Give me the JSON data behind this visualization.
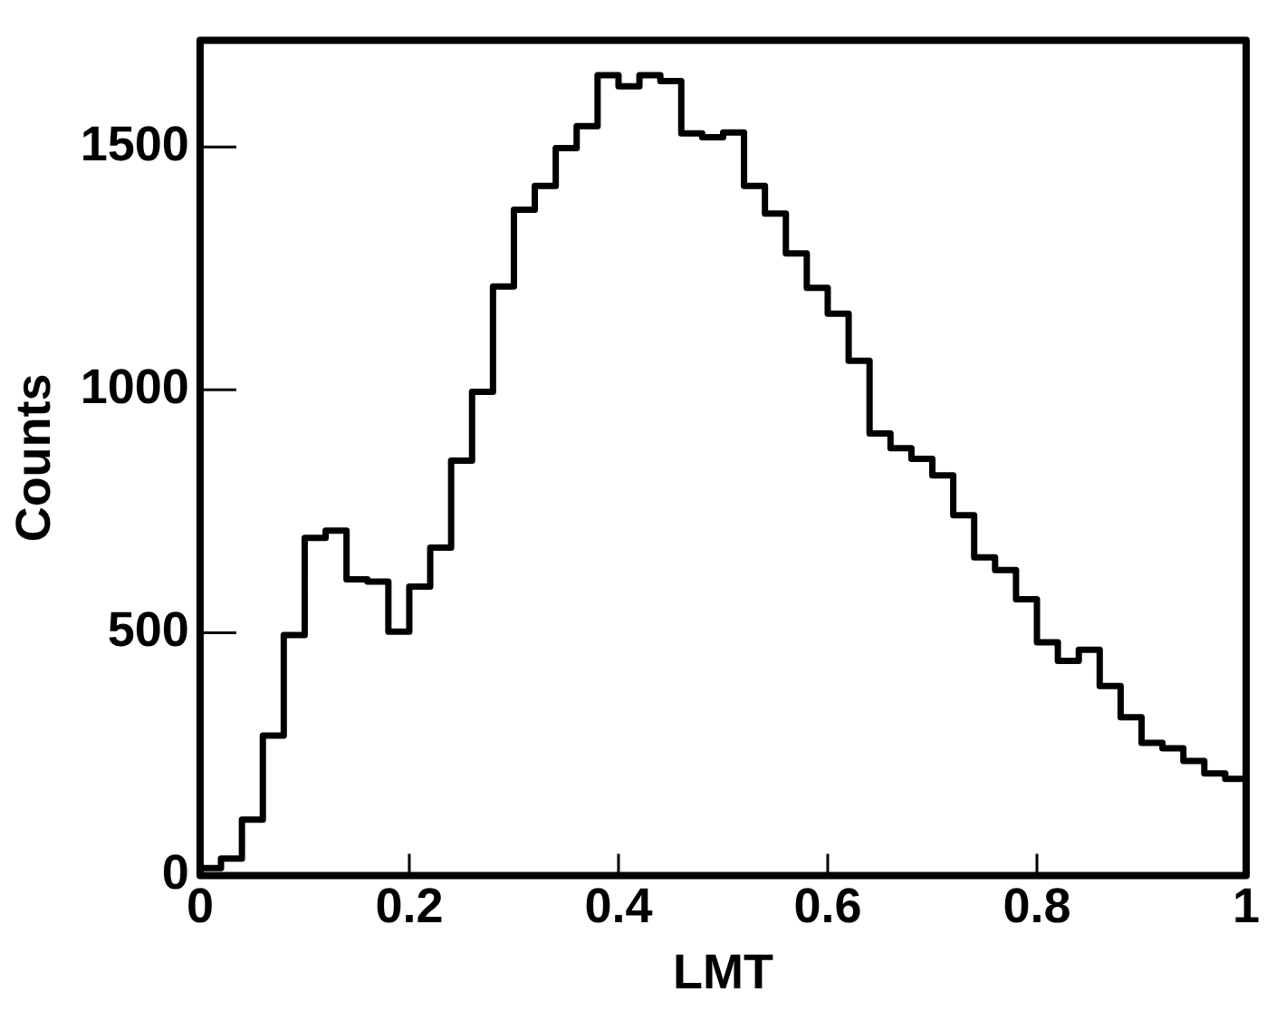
{
  "chart_data": {
    "type": "histogram",
    "xlabel": "LMT",
    "ylabel": "Counts",
    "color": "#000000",
    "bins": [
      0,
      0.02,
      0.04,
      0.06,
      0.08,
      0.1,
      0.12,
      0.14,
      0.16,
      0.18,
      0.2,
      0.22,
      0.24,
      0.26,
      0.28,
      0.3,
      0.32,
      0.34,
      0.36,
      0.38,
      0.4,
      0.42,
      0.44,
      0.46,
      0.48,
      0.5,
      0.52,
      0.54,
      0.56,
      0.58,
      0.6,
      0.62,
      0.64,
      0.66,
      0.68,
      0.7,
      0.72,
      0.74,
      0.76,
      0.78,
      0.8,
      0.82,
      0.84,
      0.86,
      0.88,
      0.9,
      0.92,
      0.94,
      0.96,
      0.98,
      1
    ],
    "values": [
      15,
      35,
      115,
      288,
      495,
      695,
      710,
      610,
      605,
      502,
      595,
      675,
      854,
      996,
      1213,
      1371,
      1420,
      1498,
      1543,
      1648,
      1625,
      1648,
      1636,
      1528,
      1520,
      1530,
      1420,
      1363,
      1281,
      1210,
      1157,
      1060,
      910,
      880,
      858,
      824,
      742,
      655,
      629,
      569,
      480,
      442,
      465,
      390,
      326,
      273,
      262,
      236,
      210,
      199
    ],
    "xlim": [
      0,
      1
    ],
    "xticks": [
      0,
      0.2,
      0.4,
      0.6,
      0.8,
      1
    ],
    "ylim": [
      0,
      1720
    ],
    "yticks": [
      0,
      500,
      1000,
      1500
    ],
    "grid": false
  }
}
